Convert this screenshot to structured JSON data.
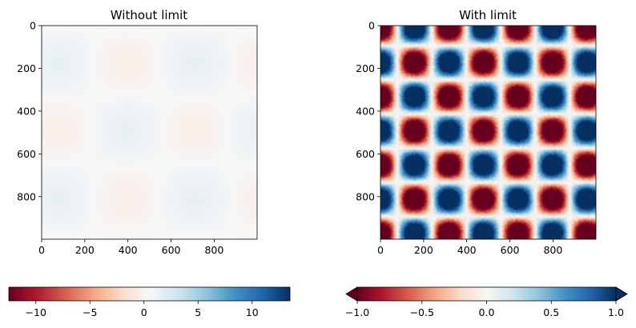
{
  "chart_data": [
    {
      "type": "heatmap",
      "title": "Without limit",
      "colormap": "RdBu",
      "x_ticks": [
        0,
        200,
        400,
        600,
        800
      ],
      "y_ticks": [
        0,
        200,
        400,
        600,
        800
      ],
      "xlim": [
        0,
        999
      ],
      "ylim": [
        999,
        0
      ],
      "z_range": [
        -12.5,
        13.5
      ],
      "description_of_field": "faint periodic pattern near zero",
      "colorbar": {
        "orientation": "horizontal",
        "ticks": [
          "−10",
          "−5",
          "0",
          "5",
          "10"
        ],
        "tick_values": [
          -10,
          -5,
          0,
          5,
          10
        ],
        "range": [
          -12.5,
          13.5
        ],
        "extend": "neither"
      }
    },
    {
      "type": "heatmap",
      "title": "With limit",
      "colormap": "RdBu",
      "x_ticks": [
        0,
        200,
        400,
        600,
        800
      ],
      "y_ticks": [
        0,
        200,
        400,
        600,
        800
      ],
      "xlim": [
        0,
        999
      ],
      "ylim": [
        999,
        0
      ],
      "z_range": [
        -1.0,
        1.0
      ],
      "description_of_field": "periodic sine pattern with period ~320 in x and y",
      "colorbar": {
        "orientation": "horizontal",
        "ticks": [
          "−1.0",
          "−0.5",
          "0.0",
          "0.5",
          "1.0"
        ],
        "tick_values": [
          -1.0,
          -0.5,
          0.0,
          0.5,
          1.0
        ],
        "range": [
          -1.0,
          1.0
        ],
        "extend": "both"
      }
    }
  ],
  "colors": {
    "rdbu": [
      "#67001f",
      "#b2182b",
      "#d6604d",
      "#f4a582",
      "#fddbc7",
      "#f7f7f7",
      "#d1e5f0",
      "#92c5de",
      "#4393c3",
      "#2166ac",
      "#053061"
    ]
  }
}
